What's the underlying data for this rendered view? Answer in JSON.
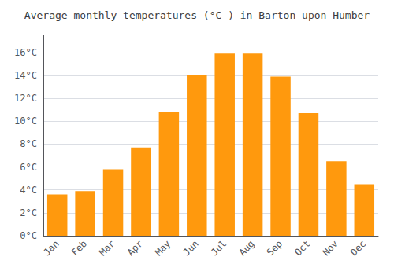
{
  "chart_data": {
    "type": "bar",
    "title": "Average monthly temperatures (°C ) in Barton upon Humber",
    "categories": [
      "Jan",
      "Feb",
      "Mar",
      "Apr",
      "May",
      "Jun",
      "Jul",
      "Aug",
      "Sep",
      "Oct",
      "Nov",
      "Dec"
    ],
    "values": [
      3.6,
      3.9,
      5.8,
      7.7,
      10.8,
      14.0,
      15.9,
      15.9,
      13.9,
      10.7,
      6.5,
      4.5
    ],
    "color": "#ff990d",
    "ylim": [
      0,
      17.5
    ],
    "yticks": [
      {
        "value": 0,
        "label": "0°C"
      },
      {
        "value": 2,
        "label": "2°C"
      },
      {
        "value": 4,
        "label": "4°C"
      },
      {
        "value": 6,
        "label": "6°C"
      },
      {
        "value": 8,
        "label": "8°C"
      },
      {
        "value": 10,
        "label": "10°C"
      },
      {
        "value": 12,
        "label": "12°C"
      },
      {
        "value": 14,
        "label": "14°C"
      },
      {
        "value": 16,
        "label": "16°C"
      }
    ],
    "grid": true
  }
}
